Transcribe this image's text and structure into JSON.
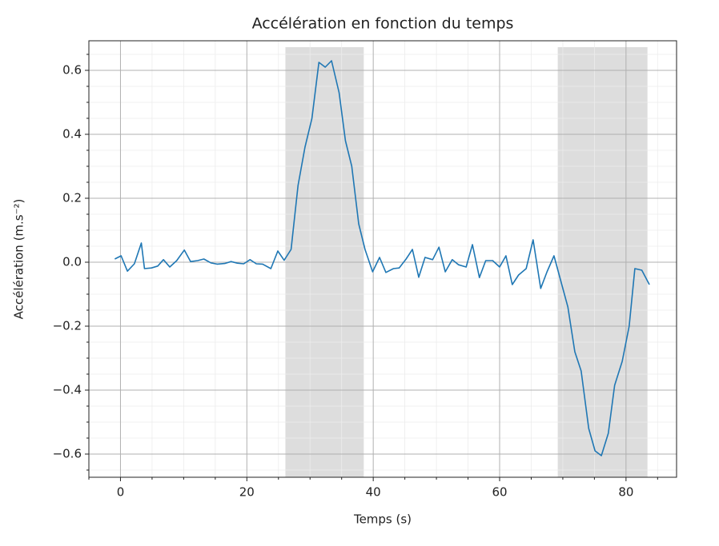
{
  "chart_data": {
    "type": "line",
    "title": "Accélération en fonction du temps",
    "x_label": "Temps (s)",
    "y_label": "Accélération (m.s⁻²)",
    "xlim": [
      -5,
      88
    ],
    "ylim": [
      -0.6725,
      0.6925
    ],
    "xticks": [
      0,
      20,
      40,
      60,
      80
    ],
    "yticks": [
      {
        "value": -0.6,
        "label": "−0.6"
      },
      {
        "value": -0.4,
        "label": "−0.4"
      },
      {
        "value": -0.2,
        "label": "−0.2"
      },
      {
        "value": 0,
        "label": "0.0"
      },
      0.2,
      0.4,
      0.6
    ],
    "minor_xticks": [
      -5,
      5,
      10,
      15,
      25,
      30,
      35,
      45,
      50,
      55,
      65,
      70,
      75,
      85
    ],
    "minor_yticks": [
      -0.65,
      -0.55,
      -0.5,
      -0.45,
      -0.35,
      -0.3,
      -0.25,
      -0.15,
      -0.1,
      -0.05,
      0.05,
      0.1,
      0.15,
      0.25,
      0.3,
      0.35,
      0.45,
      0.5,
      0.55,
      0.65
    ],
    "grid": true,
    "spans": [
      {
        "x": [
          26.1,
          38.5
        ],
        "y": [
          -0.6725,
          0.6725
        ],
        "color": "#dddddd"
      },
      {
        "x": [
          69.2,
          83.4
        ],
        "y": [
          -0.6725,
          0.6725
        ],
        "color": "#dddddd"
      }
    ],
    "series": [
      {
        "color": "#1f77b4",
        "x": [
          -0.9,
          0.1,
          1.1,
          2.2,
          3.3,
          3.8,
          4.9,
          5.9,
          6.8,
          7.8,
          8.9,
          10.1,
          11.1,
          12.2,
          13.2,
          14.3,
          15.3,
          16.5,
          17.5,
          18.5,
          19.5,
          20.5,
          21.5,
          22.5,
          23.8,
          24.9,
          25.9,
          27.0,
          28.1,
          29.2,
          30.3,
          31.4,
          32.4,
          33.4,
          34.6,
          35.6,
          36.6,
          37.7,
          38.7,
          39.9,
          41.0,
          42.0,
          43.2,
          44.1,
          45.2,
          46.2,
          47.2,
          48.2,
          49.4,
          50.4,
          51.4,
          52.5,
          53.5,
          54.7,
          55.7,
          56.8,
          57.8,
          58.9,
          60.0,
          61.0,
          62.0,
          63.0,
          64.2,
          65.3,
          66.5,
          67.5,
          68.6,
          69.7,
          70.8,
          71.9,
          72.9,
          74.1,
          75.1,
          76.1,
          77.2,
          78.2,
          79.4,
          80.5,
          81.4,
          82.5,
          83.7
        ],
        "values": [
          0.01,
          0.02,
          -0.028,
          -0.005,
          0.06,
          -0.02,
          -0.018,
          -0.012,
          0.008,
          -0.015,
          0.005,
          0.038,
          0.002,
          0.005,
          0.01,
          -0.002,
          -0.006,
          -0.004,
          0.002,
          -0.003,
          -0.005,
          0.008,
          -0.005,
          -0.006,
          -0.02,
          0.035,
          0.006,
          0.04,
          0.24,
          0.36,
          0.45,
          0.625,
          0.61,
          0.63,
          0.53,
          0.38,
          0.3,
          0.12,
          0.04,
          -0.03,
          0.015,
          -0.032,
          -0.02,
          -0.018,
          0.01,
          0.04,
          -0.047,
          0.015,
          0.008,
          0.047,
          -0.03,
          0.008,
          -0.008,
          -0.015,
          0.055,
          -0.048,
          0.005,
          0.005,
          -0.015,
          0.02,
          -0.07,
          -0.04,
          -0.02,
          0.07,
          -0.082,
          -0.03,
          0.02,
          -0.06,
          -0.14,
          -0.28,
          -0.34,
          -0.52,
          -0.59,
          -0.605,
          -0.535,
          -0.385,
          -0.31,
          -0.2,
          -0.02,
          -0.025,
          -0.07
        ]
      }
    ]
  }
}
